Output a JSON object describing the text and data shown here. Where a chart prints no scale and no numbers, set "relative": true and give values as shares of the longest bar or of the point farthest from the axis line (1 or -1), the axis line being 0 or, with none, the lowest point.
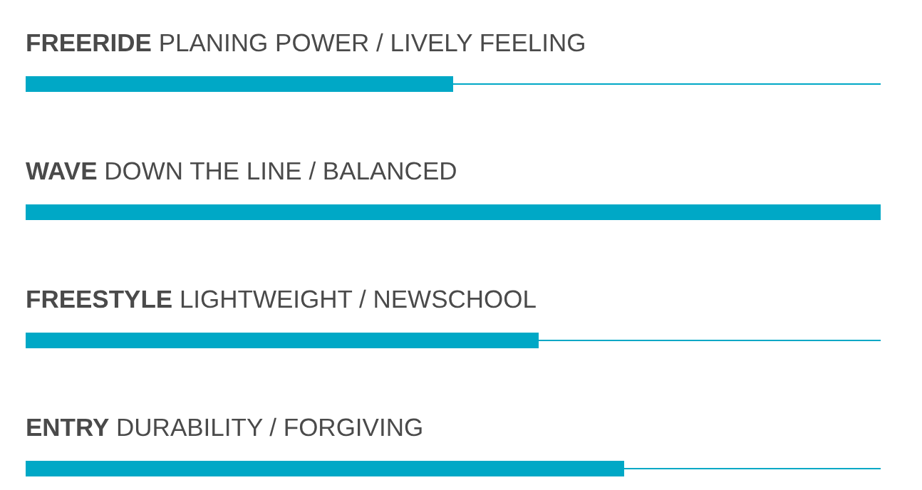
{
  "chart_data": {
    "type": "bar",
    "orientation": "horizontal",
    "relative": true,
    "categories": [
      "FREERIDE PLANING POWER / LIVELY FEELING",
      "WAVE DOWN THE LINE / BALANCED",
      "FREESTYLE LIGHTWEIGHT / NEWSCHOOL",
      "ENTRY DURABILITY / FORGIVING"
    ],
    "series": [
      {
        "color": "#00a8c6",
        "values": [
          1,
          null,
          1,
          1
        ]
      },
      {
        "color": "#00a8c6",
        "values": [
          0.5,
          1,
          0.6,
          0.7
        ]
      }
    ]
  }
}
